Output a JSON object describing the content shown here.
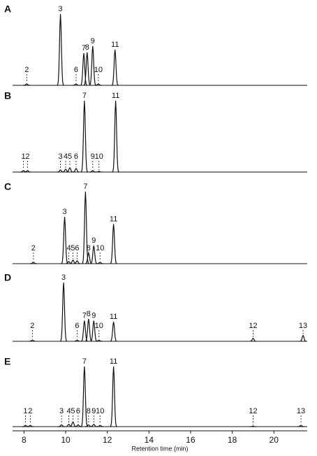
{
  "chart_data": [
    {
      "type": "chromatogram",
      "title": "A",
      "xlim": [
        7.45,
        21.6
      ],
      "ylim": [
        0,
        100
      ],
      "labels": [
        "2",
        "3",
        "6",
        "7",
        "8",
        "9",
        "10",
        "11"
      ],
      "x": [
        8.13,
        9.75,
        10.5,
        10.87,
        11.03,
        11.3,
        11.57,
        12.37
      ],
      "values": [
        2,
        100,
        2,
        45,
        46,
        55,
        2,
        50
      ]
    },
    {
      "type": "chromatogram",
      "title": "B",
      "xlim": [
        7.45,
        21.6
      ],
      "ylim": [
        0,
        100
      ],
      "labels": [
        "1",
        "2",
        "3",
        "4",
        "5",
        "6",
        "7",
        "9",
        "10",
        "11"
      ],
      "x": [
        7.97,
        8.17,
        9.75,
        10.0,
        10.2,
        10.5,
        10.9,
        11.3,
        11.6,
        12.4
      ],
      "values": [
        2,
        2,
        3,
        4,
        6,
        5,
        100,
        2,
        1,
        100
      ]
    },
    {
      "type": "chromatogram",
      "title": "C",
      "xlim": [
        7.45,
        21.6
      ],
      "ylim": [
        0,
        100
      ],
      "labels": [
        "2",
        "3",
        "4",
        "5",
        "6",
        "7",
        "8",
        "9",
        "10",
        "11"
      ],
      "x": [
        8.45,
        9.95,
        10.15,
        10.35,
        10.55,
        10.95,
        11.1,
        11.35,
        11.65,
        12.3
      ],
      "values": [
        2,
        65,
        3,
        5,
        4,
        100,
        15,
        25,
        2,
        55
      ]
    },
    {
      "type": "chromatogram",
      "title": "D",
      "xlim": [
        7.45,
        21.6
      ],
      "ylim": [
        0,
        100
      ],
      "labels": [
        "2",
        "3",
        "6",
        "7",
        "8",
        "9",
        "10",
        "11",
        "12",
        "13"
      ],
      "x": [
        8.4,
        9.9,
        10.55,
        10.9,
        11.1,
        11.35,
        11.6,
        12.3,
        19.0,
        21.4
      ],
      "values": [
        2,
        100,
        2,
        35,
        38,
        35,
        2,
        33,
        5,
        10
      ]
    },
    {
      "type": "chromatogram",
      "title": "E",
      "xlim": [
        7.45,
        21.6
      ],
      "ylim": [
        0,
        100
      ],
      "labels": [
        "1",
        "2",
        "3",
        "4",
        "5",
        "6",
        "7",
        "8",
        "9",
        "10",
        "11",
        "12",
        "13"
      ],
      "x": [
        8.07,
        8.3,
        9.8,
        10.15,
        10.35,
        10.6,
        10.9,
        11.1,
        11.35,
        11.65,
        12.3,
        19.0,
        21.3
      ],
      "values": [
        2,
        2,
        3,
        4,
        8,
        3,
        100,
        3,
        4,
        2,
        100,
        1,
        2
      ],
      "xlabel": "Retention time (min)",
      "xticks": [
        8,
        10,
        12,
        14,
        16,
        18,
        20
      ]
    }
  ]
}
